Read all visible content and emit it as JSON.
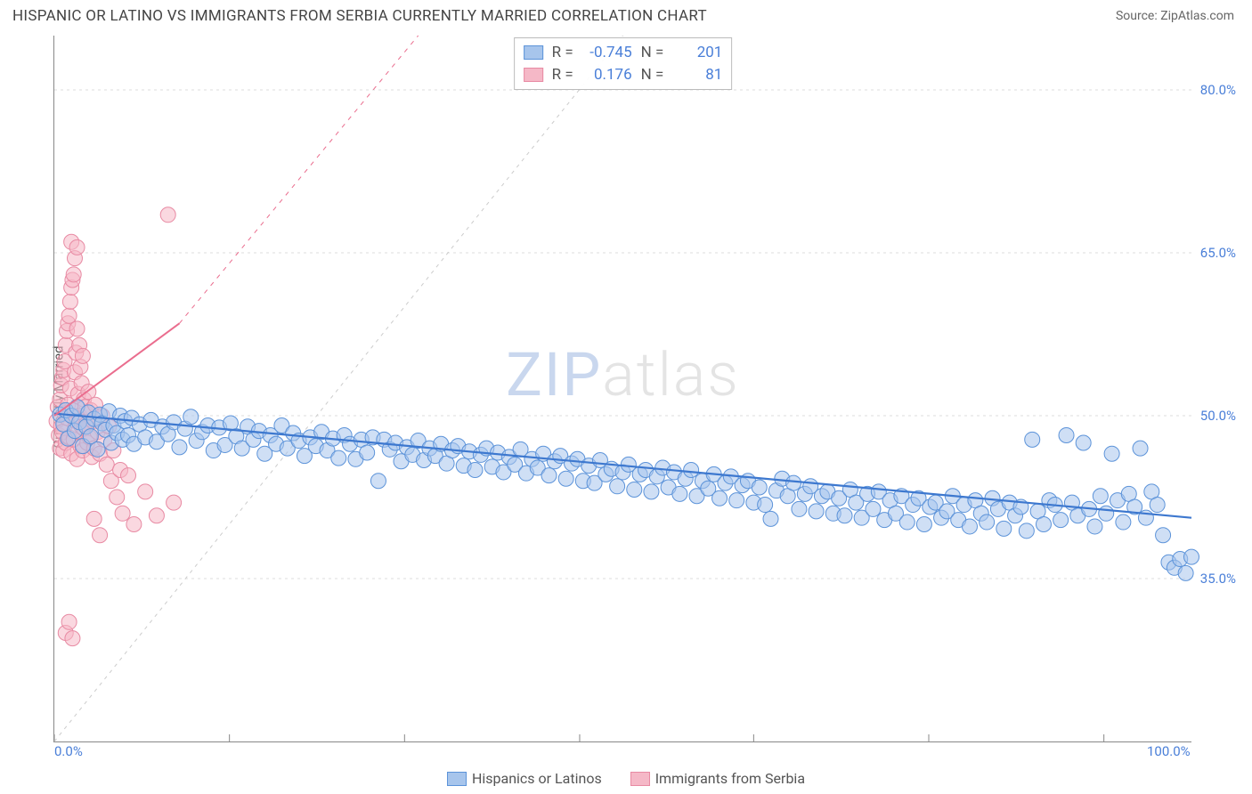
{
  "header": {
    "title": "HISPANIC OR LATINO VS IMMIGRANTS FROM SERBIA CURRENTLY MARRIED CORRELATION CHART",
    "source": "Source: ZipAtlas.com"
  },
  "watermark": {
    "part1": "ZIP",
    "part2": "atlas"
  },
  "chart": {
    "type": "scatter",
    "ylabel": "Currently Married",
    "background_color": "#ffffff",
    "grid_color": "#dddddd",
    "axis_color": "#888888",
    "label_color": "#4a7fd8",
    "xlim": [
      0,
      100
    ],
    "ylim": [
      20,
      85
    ],
    "xtick_labels": [
      {
        "pos": 0,
        "text": "0.0%"
      },
      {
        "pos": 100,
        "text": "100.0%"
      }
    ],
    "xtick_marks": [
      0,
      15.4,
      30.8,
      46.2,
      61.5,
      76.9,
      92.3
    ],
    "ytick_labels": [
      {
        "pos": 35,
        "text": "35.0%"
      },
      {
        "pos": 50,
        "text": "50.0%"
      },
      {
        "pos": 65,
        "text": "65.0%"
      },
      {
        "pos": 80,
        "text": "80.0%"
      }
    ],
    "marker_radius": 8.5,
    "marker_opacity": 0.55,
    "series": [
      {
        "id": "hispanic",
        "label": "Hispanics or Latinos",
        "fill": "#a7c5ec",
        "stroke": "#5c93d9",
        "line_color": "#3d78cf",
        "line_width": 2.2,
        "R": "-0.745",
        "N": "201",
        "trend": {
          "x1": 0,
          "y1": 50.2,
          "x2": 100,
          "y2": 40.6
        },
        "points": [
          [
            0.5,
            50.1
          ],
          [
            0.8,
            49.2
          ],
          [
            1.0,
            50.5
          ],
          [
            1.2,
            47.9
          ],
          [
            1.5,
            50.0
          ],
          [
            1.8,
            48.6
          ],
          [
            2.0,
            50.8
          ],
          [
            2.2,
            49.4
          ],
          [
            2.5,
            47.2
          ],
          [
            2.8,
            49.0
          ],
          [
            3.0,
            50.3
          ],
          [
            3.2,
            48.1
          ],
          [
            3.5,
            49.7
          ],
          [
            3.8,
            46.9
          ],
          [
            4.0,
            50.1
          ],
          [
            4.2,
            49.3
          ],
          [
            4.5,
            48.7
          ],
          [
            4.8,
            50.4
          ],
          [
            5.0,
            47.5
          ],
          [
            5.2,
            49.1
          ],
          [
            5.5,
            48.4
          ],
          [
            5.8,
            50.0
          ],
          [
            6.0,
            47.8
          ],
          [
            6.2,
            49.5
          ],
          [
            6.5,
            48.2
          ],
          [
            6.8,
            49.8
          ],
          [
            7.0,
            47.4
          ],
          [
            7.5,
            49.2
          ],
          [
            8.0,
            48.0
          ],
          [
            8.5,
            49.6
          ],
          [
            9.0,
            47.6
          ],
          [
            9.5,
            49.0
          ],
          [
            10.0,
            48.3
          ],
          [
            10.5,
            49.4
          ],
          [
            11.0,
            47.1
          ],
          [
            11.5,
            48.8
          ],
          [
            12.0,
            49.9
          ],
          [
            12.5,
            47.7
          ],
          [
            13.0,
            48.5
          ],
          [
            13.5,
            49.1
          ],
          [
            14.0,
            46.8
          ],
          [
            14.5,
            48.9
          ],
          [
            15.0,
            47.3
          ],
          [
            15.5,
            49.3
          ],
          [
            16.0,
            48.1
          ],
          [
            16.5,
            47.0
          ],
          [
            17.0,
            49.0
          ],
          [
            17.5,
            47.8
          ],
          [
            18.0,
            48.6
          ],
          [
            18.5,
            46.5
          ],
          [
            19.0,
            48.2
          ],
          [
            19.5,
            47.4
          ],
          [
            20.0,
            49.1
          ],
          [
            20.5,
            47.0
          ],
          [
            21.0,
            48.4
          ],
          [
            21.5,
            47.7
          ],
          [
            22.0,
            46.3
          ],
          [
            22.5,
            48.0
          ],
          [
            23.0,
            47.2
          ],
          [
            23.5,
            48.5
          ],
          [
            24.0,
            46.8
          ],
          [
            24.5,
            47.9
          ],
          [
            25.0,
            46.1
          ],
          [
            25.5,
            48.2
          ],
          [
            26.0,
            47.4
          ],
          [
            26.5,
            46.0
          ],
          [
            27.0,
            47.8
          ],
          [
            27.5,
            46.6
          ],
          [
            28.0,
            48.0
          ],
          [
            28.5,
            44.0
          ],
          [
            29.0,
            47.8
          ],
          [
            29.5,
            46.9
          ],
          [
            30.0,
            47.5
          ],
          [
            30.5,
            45.8
          ],
          [
            31.0,
            47.1
          ],
          [
            31.5,
            46.4
          ],
          [
            32.0,
            47.7
          ],
          [
            32.5,
            45.9
          ],
          [
            33.0,
            47.0
          ],
          [
            33.5,
            46.3
          ],
          [
            34.0,
            47.4
          ],
          [
            34.5,
            45.6
          ],
          [
            35.0,
            46.8
          ],
          [
            35.5,
            47.2
          ],
          [
            36.0,
            45.4
          ],
          [
            36.5,
            46.7
          ],
          [
            37.0,
            45.0
          ],
          [
            37.5,
            46.4
          ],
          [
            38.0,
            47.0
          ],
          [
            38.5,
            45.3
          ],
          [
            39.0,
            46.6
          ],
          [
            39.5,
            44.8
          ],
          [
            40.0,
            46.2
          ],
          [
            40.5,
            45.5
          ],
          [
            41.0,
            46.9
          ],
          [
            41.5,
            44.7
          ],
          [
            42.0,
            46.0
          ],
          [
            42.5,
            45.2
          ],
          [
            43.0,
            46.5
          ],
          [
            43.5,
            44.5
          ],
          [
            44.0,
            45.8
          ],
          [
            44.5,
            46.3
          ],
          [
            45.0,
            44.2
          ],
          [
            45.5,
            45.6
          ],
          [
            46.0,
            46.0
          ],
          [
            46.5,
            44.0
          ],
          [
            47.0,
            45.4
          ],
          [
            47.5,
            43.8
          ],
          [
            48.0,
            45.9
          ],
          [
            48.5,
            44.6
          ],
          [
            49.0,
            45.1
          ],
          [
            49.5,
            43.5
          ],
          [
            50.0,
            44.8
          ],
          [
            50.5,
            45.5
          ],
          [
            51.0,
            43.2
          ],
          [
            51.5,
            44.6
          ],
          [
            52.0,
            45.0
          ],
          [
            52.5,
            43.0
          ],
          [
            53.0,
            44.4
          ],
          [
            53.5,
            45.2
          ],
          [
            54.0,
            43.4
          ],
          [
            54.5,
            44.8
          ],
          [
            55.0,
            42.8
          ],
          [
            55.5,
            44.2
          ],
          [
            56.0,
            45.0
          ],
          [
            56.5,
            42.6
          ],
          [
            57.0,
            44.0
          ],
          [
            57.5,
            43.3
          ],
          [
            58.0,
            44.6
          ],
          [
            58.5,
            42.4
          ],
          [
            59.0,
            43.8
          ],
          [
            59.5,
            44.4
          ],
          [
            60.0,
            42.2
          ],
          [
            60.5,
            43.6
          ],
          [
            61.0,
            44.0
          ],
          [
            61.5,
            42.0
          ],
          [
            62.0,
            43.4
          ],
          [
            62.5,
            41.8
          ],
          [
            63.0,
            40.5
          ],
          [
            63.5,
            43.1
          ],
          [
            64.0,
            44.2
          ],
          [
            64.5,
            42.6
          ],
          [
            65.0,
            43.8
          ],
          [
            65.5,
            41.4
          ],
          [
            66.0,
            42.8
          ],
          [
            66.5,
            43.5
          ],
          [
            67.0,
            41.2
          ],
          [
            67.5,
            42.6
          ],
          [
            68.0,
            43.0
          ],
          [
            68.5,
            41.0
          ],
          [
            69.0,
            42.4
          ],
          [
            69.5,
            40.8
          ],
          [
            70.0,
            43.2
          ],
          [
            70.5,
            42.0
          ],
          [
            71.0,
            40.6
          ],
          [
            71.5,
            42.8
          ],
          [
            72.0,
            41.4
          ],
          [
            72.5,
            43.0
          ],
          [
            73.0,
            40.4
          ],
          [
            73.5,
            42.2
          ],
          [
            74.0,
            41.0
          ],
          [
            74.5,
            42.6
          ],
          [
            75.0,
            40.2
          ],
          [
            75.5,
            41.8
          ],
          [
            76.0,
            42.4
          ],
          [
            76.5,
            40.0
          ],
          [
            77.0,
            41.6
          ],
          [
            77.5,
            42.0
          ],
          [
            78.0,
            40.6
          ],
          [
            78.5,
            41.2
          ],
          [
            79.0,
            42.6
          ],
          [
            79.5,
            40.4
          ],
          [
            80.0,
            41.8
          ],
          [
            80.5,
            39.8
          ],
          [
            81.0,
            42.2
          ],
          [
            81.5,
            41.0
          ],
          [
            82.0,
            40.2
          ],
          [
            82.5,
            42.4
          ],
          [
            83.0,
            41.4
          ],
          [
            83.5,
            39.6
          ],
          [
            84.0,
            42.0
          ],
          [
            84.5,
            40.8
          ],
          [
            85.0,
            41.6
          ],
          [
            85.5,
            39.4
          ],
          [
            86.0,
            47.8
          ],
          [
            86.5,
            41.2
          ],
          [
            87.0,
            40.0
          ],
          [
            87.5,
            42.2
          ],
          [
            88.0,
            41.8
          ],
          [
            88.5,
            40.4
          ],
          [
            89.0,
            48.2
          ],
          [
            89.5,
            42.0
          ],
          [
            90.0,
            40.8
          ],
          [
            90.5,
            47.5
          ],
          [
            91.0,
            41.4
          ],
          [
            91.5,
            39.8
          ],
          [
            92.0,
            42.6
          ],
          [
            92.5,
            41.0
          ],
          [
            93.0,
            46.5
          ],
          [
            93.5,
            42.2
          ],
          [
            94.0,
            40.2
          ],
          [
            94.5,
            42.8
          ],
          [
            95.0,
            41.6
          ],
          [
            95.5,
            47.0
          ],
          [
            96.0,
            40.6
          ],
          [
            96.5,
            43.0
          ],
          [
            97.0,
            41.8
          ],
          [
            97.5,
            39.0
          ],
          [
            98.0,
            36.5
          ],
          [
            98.5,
            36.0
          ],
          [
            99.0,
            36.8
          ],
          [
            99.5,
            35.5
          ],
          [
            100.0,
            37.0
          ]
        ]
      },
      {
        "id": "serbia",
        "label": "Immigrants from Serbia",
        "fill": "#f5b8c7",
        "stroke": "#e88aa3",
        "line_color": "#ea6d8e",
        "line_width": 2.0,
        "R": "0.176",
        "N": "81",
        "trend": {
          "x1": 0,
          "y1": 50.0,
          "x2": 11,
          "y2": 58.5
        },
        "trend_ext": {
          "x1": 11,
          "y1": 58.5,
          "x2": 32,
          "y2": 85
        },
        "diagonal": {
          "x1": 0,
          "y1": 20,
          "x2": 50,
          "y2": 85
        },
        "points": [
          [
            0.2,
            49.5
          ],
          [
            0.3,
            50.8
          ],
          [
            0.4,
            48.2
          ],
          [
            0.5,
            51.5
          ],
          [
            0.5,
            47.0
          ],
          [
            0.6,
            52.8
          ],
          [
            0.6,
            49.0
          ],
          [
            0.7,
            53.5
          ],
          [
            0.7,
            48.5
          ],
          [
            0.8,
            54.2
          ],
          [
            0.8,
            46.8
          ],
          [
            0.9,
            55.0
          ],
          [
            0.9,
            50.2
          ],
          [
            1.0,
            56.5
          ],
          [
            1.0,
            47.5
          ],
          [
            1.1,
            57.8
          ],
          [
            1.1,
            49.8
          ],
          [
            1.2,
            58.5
          ],
          [
            1.2,
            51.0
          ],
          [
            1.3,
            59.2
          ],
          [
            1.3,
            48.0
          ],
          [
            1.4,
            60.5
          ],
          [
            1.4,
            52.5
          ],
          [
            1.5,
            61.8
          ],
          [
            1.5,
            46.5
          ],
          [
            1.6,
            62.5
          ],
          [
            1.6,
            50.5
          ],
          [
            1.7,
            63.0
          ],
          [
            1.7,
            47.8
          ],
          [
            1.8,
            64.5
          ],
          [
            1.8,
            54.0
          ],
          [
            1.9,
            55.8
          ],
          [
            1.9,
            49.5
          ],
          [
            2.0,
            58.0
          ],
          [
            2.0,
            46.0
          ],
          [
            2.1,
            52.0
          ],
          [
            2.1,
            48.5
          ],
          [
            2.2,
            56.5
          ],
          [
            2.2,
            50.0
          ],
          [
            2.3,
            54.5
          ],
          [
            2.3,
            47.2
          ],
          [
            2.4,
            53.0
          ],
          [
            2.4,
            49.0
          ],
          [
            2.5,
            55.5
          ],
          [
            2.5,
            46.8
          ],
          [
            2.6,
            51.5
          ],
          [
            2.6,
            48.8
          ],
          [
            2.7,
            50.8
          ],
          [
            2.8,
            49.2
          ],
          [
            2.9,
            47.5
          ],
          [
            3.0,
            52.2
          ],
          [
            3.1,
            48.0
          ],
          [
            3.2,
            50.5
          ],
          [
            3.3,
            46.2
          ],
          [
            3.4,
            49.5
          ],
          [
            3.5,
            47.0
          ],
          [
            3.6,
            51.0
          ],
          [
            3.8,
            48.5
          ],
          [
            4.0,
            46.5
          ],
          [
            4.2,
            50.0
          ],
          [
            4.4,
            47.8
          ],
          [
            4.6,
            45.5
          ],
          [
            4.8,
            49.0
          ],
          [
            5.0,
            44.0
          ],
          [
            5.2,
            46.8
          ],
          [
            5.5,
            42.5
          ],
          [
            5.8,
            45.0
          ],
          [
            6.0,
            41.0
          ],
          [
            6.5,
            44.5
          ],
          [
            7.0,
            40.0
          ],
          [
            8.0,
            43.0
          ],
          [
            9.0,
            40.8
          ],
          [
            10.0,
            68.5
          ],
          [
            10.5,
            42.0
          ],
          [
            1.5,
            66.0
          ],
          [
            2.0,
            65.5
          ],
          [
            1.0,
            30.0
          ],
          [
            1.3,
            31.0
          ],
          [
            1.6,
            29.5
          ],
          [
            3.5,
            40.5
          ],
          [
            4.0,
            39.0
          ]
        ]
      }
    ]
  },
  "footer": {
    "items": [
      {
        "swatch_fill": "#a7c5ec",
        "swatch_stroke": "#5c93d9",
        "label": "Hispanics or Latinos"
      },
      {
        "swatch_fill": "#f5b8c7",
        "swatch_stroke": "#e88aa3",
        "label": "Immigrants from Serbia"
      }
    ]
  }
}
